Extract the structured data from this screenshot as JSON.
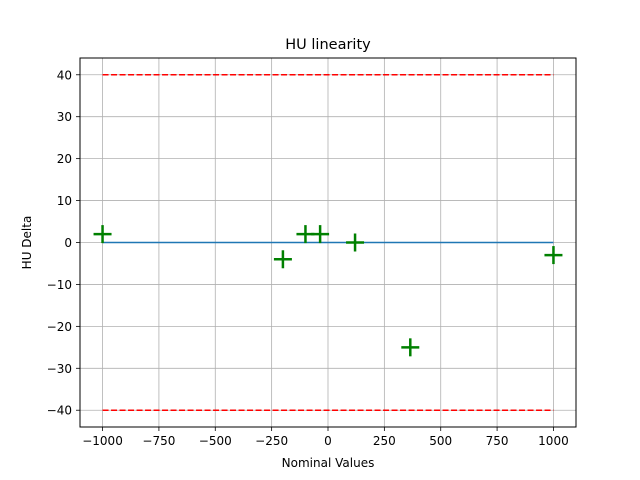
{
  "chart_data": {
    "type": "scatter",
    "title": "HU linearity",
    "xlabel": "Nominal Values",
    "ylabel": "HU Delta",
    "xlim": [
      -1100,
      1100
    ],
    "ylim": [
      -44,
      44
    ],
    "grid": true,
    "xticks": [
      -1000,
      -750,
      -500,
      -250,
      0,
      250,
      500,
      750,
      1000
    ],
    "yticks": [
      -40,
      -30,
      -20,
      -10,
      0,
      10,
      20,
      30,
      40
    ],
    "xtick_labels": [
      "−1000",
      "−750",
      "−500",
      "−250",
      "0",
      "250",
      "500",
      "750",
      "1000"
    ],
    "ytick_labels": [
      "−40",
      "−30",
      "−20",
      "−10",
      "0",
      "10",
      "20",
      "30",
      "40"
    ],
    "series": [
      {
        "type": "scatter",
        "marker": "+",
        "color": "#008000",
        "x": [
          -1000,
          -200,
          -100,
          -35,
          120,
          365,
          1000
        ],
        "y": [
          2,
          -4,
          2,
          2,
          0,
          -25,
          -3
        ]
      },
      {
        "type": "line",
        "style": "solid",
        "color": "#1f77b4",
        "x": [
          -1000,
          1000
        ],
        "y": [
          0,
          0
        ]
      },
      {
        "type": "line",
        "style": "dashed",
        "color": "#ff0000",
        "x": [
          -1000,
          1000
        ],
        "y": [
          40,
          40
        ]
      },
      {
        "type": "line",
        "style": "dashed",
        "color": "#ff0000",
        "x": [
          -1000,
          1000
        ],
        "y": [
          -40,
          -40
        ]
      }
    ]
  }
}
